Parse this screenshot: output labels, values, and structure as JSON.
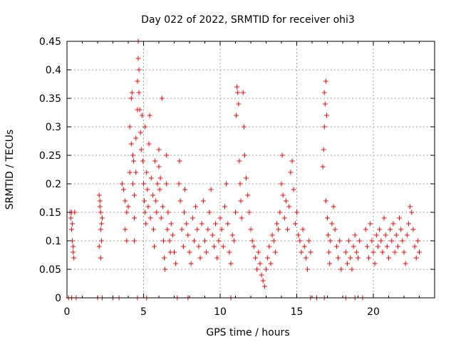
{
  "chart_data": {
    "type": "scatter",
    "title": "Day 022 of 2022, SRMTID for receiver ohi3",
    "xlabel": "GPS time / hours",
    "ylabel": "SRMTID / TECUs",
    "xlim": [
      0,
      24
    ],
    "ylim": [
      0,
      0.45
    ],
    "xticks": [
      0,
      5,
      10,
      15,
      20
    ],
    "yticks": [
      0,
      0.05,
      0.1,
      0.15,
      0.2,
      0.25,
      0.3,
      0.35,
      0.4,
      0.45
    ],
    "ytick_labels": [
      "0",
      "0.05",
      "0.1",
      "0.15",
      "0.2",
      "0.25",
      "0.3",
      "0.35",
      "0.4",
      "0.45"
    ],
    "grid": true,
    "marker": "+",
    "color": "#ff0000",
    "series": [
      {
        "name": "SRMTID",
        "points": [
          [
            0.2,
            0.15
          ],
          [
            0.25,
            0.14
          ],
          [
            0.3,
            0.12
          ],
          [
            0.35,
            0.1
          ],
          [
            0.4,
            0.08
          ],
          [
            0.45,
            0.07
          ],
          [
            0.3,
            0.15
          ],
          [
            0.35,
            0.13
          ],
          [
            0.4,
            0.09
          ],
          [
            0.5,
            0.15
          ],
          [
            2.1,
            0.18
          ],
          [
            2.15,
            0.16
          ],
          [
            2.2,
            0.15
          ],
          [
            2.2,
            0.12
          ],
          [
            2.25,
            0.1
          ],
          [
            2.1,
            0.09
          ],
          [
            2.2,
            0.07
          ],
          [
            2.3,
            0.14
          ],
          [
            2.15,
            0.17
          ],
          [
            2.25,
            0.13
          ],
          [
            3.6,
            0.2
          ],
          [
            3.7,
            0.19
          ],
          [
            3.8,
            0.17
          ],
          [
            3.9,
            0.15
          ],
          [
            3.8,
            0.12
          ],
          [
            3.9,
            0.1
          ],
          [
            4.0,
            0.16
          ],
          [
            4.1,
            0.22
          ],
          [
            4.1,
            0.3
          ],
          [
            4.2,
            0.35
          ],
          [
            4.2,
            0.27
          ],
          [
            4.25,
            0.36
          ],
          [
            4.3,
            0.25
          ],
          [
            4.35,
            0.24
          ],
          [
            4.3,
            0.2
          ],
          [
            4.4,
            0.18
          ],
          [
            4.4,
            0.14
          ],
          [
            4.4,
            0.1
          ],
          [
            4.5,
            0.28
          ],
          [
            4.5,
            0.22
          ],
          [
            4.6,
            0.33
          ],
          [
            4.6,
            0.38
          ],
          [
            4.65,
            0.42
          ],
          [
            4.65,
            0.45
          ],
          [
            4.7,
            0.4
          ],
          [
            4.7,
            0.36
          ],
          [
            4.75,
            0.33
          ],
          [
            4.8,
            0.29
          ],
          [
            4.85,
            0.26
          ],
          [
            4.9,
            0.32
          ],
          [
            4.95,
            0.24
          ],
          [
            5.0,
            0.2
          ],
          [
            5.05,
            0.17
          ],
          [
            5.1,
            0.3
          ],
          [
            5.1,
            0.15
          ],
          [
            5.15,
            0.13
          ],
          [
            5.2,
            0.22
          ],
          [
            5.25,
            0.19
          ],
          [
            5.3,
            0.16
          ],
          [
            5.35,
            0.27
          ],
          [
            5.4,
            0.32
          ],
          [
            5.45,
            0.14
          ],
          [
            5.5,
            0.21
          ],
          [
            5.6,
            0.18
          ],
          [
            5.65,
            0.12
          ],
          [
            5.7,
            0.09
          ],
          [
            5.75,
            0.24
          ],
          [
            5.8,
            0.17
          ],
          [
            5.85,
            0.15
          ],
          [
            5.9,
            0.2
          ],
          [
            6.0,
            0.26
          ],
          [
            6.0,
            0.23
          ],
          [
            6.05,
            0.19
          ],
          [
            6.1,
            0.21
          ],
          [
            6.15,
            0.14
          ],
          [
            6.2,
            0.35
          ],
          [
            6.25,
            0.16
          ],
          [
            6.3,
            0.1
          ],
          [
            6.35,
            0.07
          ],
          [
            6.4,
            0.05
          ],
          [
            6.5,
            0.25
          ],
          [
            6.5,
            0.2
          ],
          [
            6.55,
            0.12
          ],
          [
            6.6,
            0.15
          ],
          [
            6.7,
            0.1
          ],
          [
            6.75,
            0.08
          ],
          [
            6.8,
            0.13
          ],
          [
            6.9,
            0.11
          ],
          [
            7.0,
            0.08
          ],
          [
            7.1,
            0.06
          ],
          [
            7.3,
            0.2
          ],
          [
            7.35,
            0.24
          ],
          [
            7.4,
            0.17
          ],
          [
            7.5,
            0.12
          ],
          [
            7.6,
            0.09
          ],
          [
            7.65,
            0.15
          ],
          [
            7.7,
            0.19
          ],
          [
            7.8,
            0.13
          ],
          [
            7.9,
            0.11
          ],
          [
            8.0,
            0.08
          ],
          [
            8.1,
            0.06
          ],
          [
            8.2,
            0.14
          ],
          [
            8.3,
            0.1
          ],
          [
            8.4,
            0.16
          ],
          [
            8.5,
            0.12
          ],
          [
            8.6,
            0.09
          ],
          [
            8.7,
            0.07
          ],
          [
            8.8,
            0.13
          ],
          [
            8.9,
            0.17
          ],
          [
            9.0,
            0.1
          ],
          [
            9.1,
            0.08
          ],
          [
            9.2,
            0.12
          ],
          [
            9.3,
            0.15
          ],
          [
            9.4,
            0.19
          ],
          [
            9.5,
            0.11
          ],
          [
            9.6,
            0.09
          ],
          [
            9.7,
            0.13
          ],
          [
            9.8,
            0.07
          ],
          [
            9.9,
            0.1
          ],
          [
            10.0,
            0.14
          ],
          [
            10.1,
            0.12
          ],
          [
            10.2,
            0.09
          ],
          [
            10.3,
            0.16
          ],
          [
            10.4,
            0.2
          ],
          [
            10.5,
            0.13
          ],
          [
            10.6,
            0.08
          ],
          [
            10.7,
            0.06
          ],
          [
            10.8,
            0.11
          ],
          [
            10.9,
            0.1
          ],
          [
            11.0,
            0.15
          ],
          [
            11.05,
            0.32
          ],
          [
            11.1,
            0.37
          ],
          [
            11.15,
            0.36
          ],
          [
            11.2,
            0.34
          ],
          [
            11.25,
            0.24
          ],
          [
            11.3,
            0.2
          ],
          [
            11.35,
            0.17
          ],
          [
            11.4,
            0.14
          ],
          [
            11.5,
            0.36
          ],
          [
            11.55,
            0.3
          ],
          [
            11.6,
            0.25
          ],
          [
            11.7,
            0.21
          ],
          [
            11.8,
            0.18
          ],
          [
            11.9,
            0.15
          ],
          [
            12.0,
            0.12
          ],
          [
            12.1,
            0.1
          ],
          [
            12.2,
            0.09
          ],
          [
            12.3,
            0.07
          ],
          [
            12.4,
            0.05
          ],
          [
            12.5,
            0.08
          ],
          [
            12.6,
            0.06
          ],
          [
            12.7,
            0.04
          ],
          [
            12.8,
            0.03
          ],
          [
            12.9,
            0.02
          ],
          [
            13.0,
            0.05
          ],
          [
            13.1,
            0.07
          ],
          [
            13.2,
            0.09
          ],
          [
            13.3,
            0.06
          ],
          [
            13.4,
            0.11
          ],
          [
            13.5,
            0.1
          ],
          [
            13.6,
            0.08
          ],
          [
            13.7,
            0.13
          ],
          [
            13.8,
            0.12
          ],
          [
            13.9,
            0.15
          ],
          [
            14.0,
            0.2
          ],
          [
            14.05,
            0.25
          ],
          [
            14.1,
            0.18
          ],
          [
            14.2,
            0.14
          ],
          [
            14.3,
            0.17
          ],
          [
            14.4,
            0.12
          ],
          [
            14.5,
            0.16
          ],
          [
            14.6,
            0.22
          ],
          [
            14.7,
            0.24
          ],
          [
            14.8,
            0.19
          ],
          [
            14.9,
            0.13
          ],
          [
            15.0,
            0.15
          ],
          [
            15.1,
            0.11
          ],
          [
            15.2,
            0.1
          ],
          [
            15.3,
            0.08
          ],
          [
            15.4,
            0.12
          ],
          [
            15.5,
            0.09
          ],
          [
            15.6,
            0.07
          ],
          [
            15.7,
            0.05
          ],
          [
            15.8,
            0.1
          ],
          [
            15.9,
            0.08
          ],
          [
            16.7,
            0.23
          ],
          [
            16.75,
            0.26
          ],
          [
            16.8,
            0.3
          ],
          [
            16.85,
            0.34
          ],
          [
            16.9,
            0.38
          ],
          [
            16.8,
            0.36
          ],
          [
            16.95,
            0.32
          ],
          [
            16.9,
            0.17
          ],
          [
            17.0,
            0.14
          ],
          [
            17.05,
            0.11
          ],
          [
            17.1,
            0.08
          ],
          [
            17.15,
            0.06
          ],
          [
            17.2,
            0.1
          ],
          [
            17.3,
            0.13
          ],
          [
            17.4,
            0.16
          ],
          [
            17.5,
            0.12
          ],
          [
            17.6,
            0.09
          ],
          [
            17.7,
            0.07
          ],
          [
            17.8,
            0.1
          ],
          [
            17.9,
            0.05
          ],
          [
            18.2,
            0.08
          ],
          [
            18.3,
            0.06
          ],
          [
            18.4,
            0.1
          ],
          [
            18.5,
            0.07
          ],
          [
            18.6,
            0.05
          ],
          [
            18.7,
            0.09
          ],
          [
            18.8,
            0.11
          ],
          [
            18.9,
            0.08
          ],
          [
            19.0,
            0.07
          ],
          [
            19.1,
            0.1
          ],
          [
            19.5,
            0.12
          ],
          [
            19.6,
            0.09
          ],
          [
            19.7,
            0.07
          ],
          [
            19.8,
            0.13
          ],
          [
            19.9,
            0.1
          ],
          [
            20.0,
            0.08
          ],
          [
            20.1,
            0.06
          ],
          [
            20.2,
            0.11
          ],
          [
            20.3,
            0.09
          ],
          [
            20.4,
            0.12
          ],
          [
            20.5,
            0.1
          ],
          [
            20.6,
            0.08
          ],
          [
            20.7,
            0.14
          ],
          [
            20.8,
            0.11
          ],
          [
            20.9,
            0.09
          ],
          [
            21.0,
            0.07
          ],
          [
            21.1,
            0.12
          ],
          [
            21.2,
            0.1
          ],
          [
            21.3,
            0.13
          ],
          [
            21.4,
            0.08
          ],
          [
            21.5,
            0.11
          ],
          [
            21.6,
            0.09
          ],
          [
            21.7,
            0.14
          ],
          [
            21.8,
            0.12
          ],
          [
            21.9,
            0.1
          ],
          [
            22.0,
            0.08
          ],
          [
            22.1,
            0.06
          ],
          [
            22.2,
            0.11
          ],
          [
            22.3,
            0.13
          ],
          [
            22.4,
            0.16
          ],
          [
            22.5,
            0.15
          ],
          [
            22.6,
            0.12
          ],
          [
            22.7,
            0.09
          ],
          [
            22.8,
            0.07
          ],
          [
            22.9,
            0.1
          ],
          [
            23.0,
            0.08
          ],
          [
            0.1,
            0.0
          ],
          [
            0.3,
            0.0
          ],
          [
            0.6,
            0.0
          ],
          [
            2.0,
            0.0
          ],
          [
            2.3,
            0.0
          ],
          [
            3.0,
            0.0
          ],
          [
            3.4,
            0.0
          ],
          [
            4.6,
            0.0
          ],
          [
            5.2,
            0.0
          ],
          [
            7.2,
            0.0
          ],
          [
            7.9,
            0.0
          ],
          [
            10.7,
            0.0
          ],
          [
            15.9,
            0.0
          ],
          [
            16.3,
            0.0
          ],
          [
            16.8,
            0.0
          ],
          [
            18.2,
            0.0
          ],
          [
            18.8,
            0.0
          ],
          [
            19.3,
            0.0
          ]
        ]
      }
    ]
  }
}
